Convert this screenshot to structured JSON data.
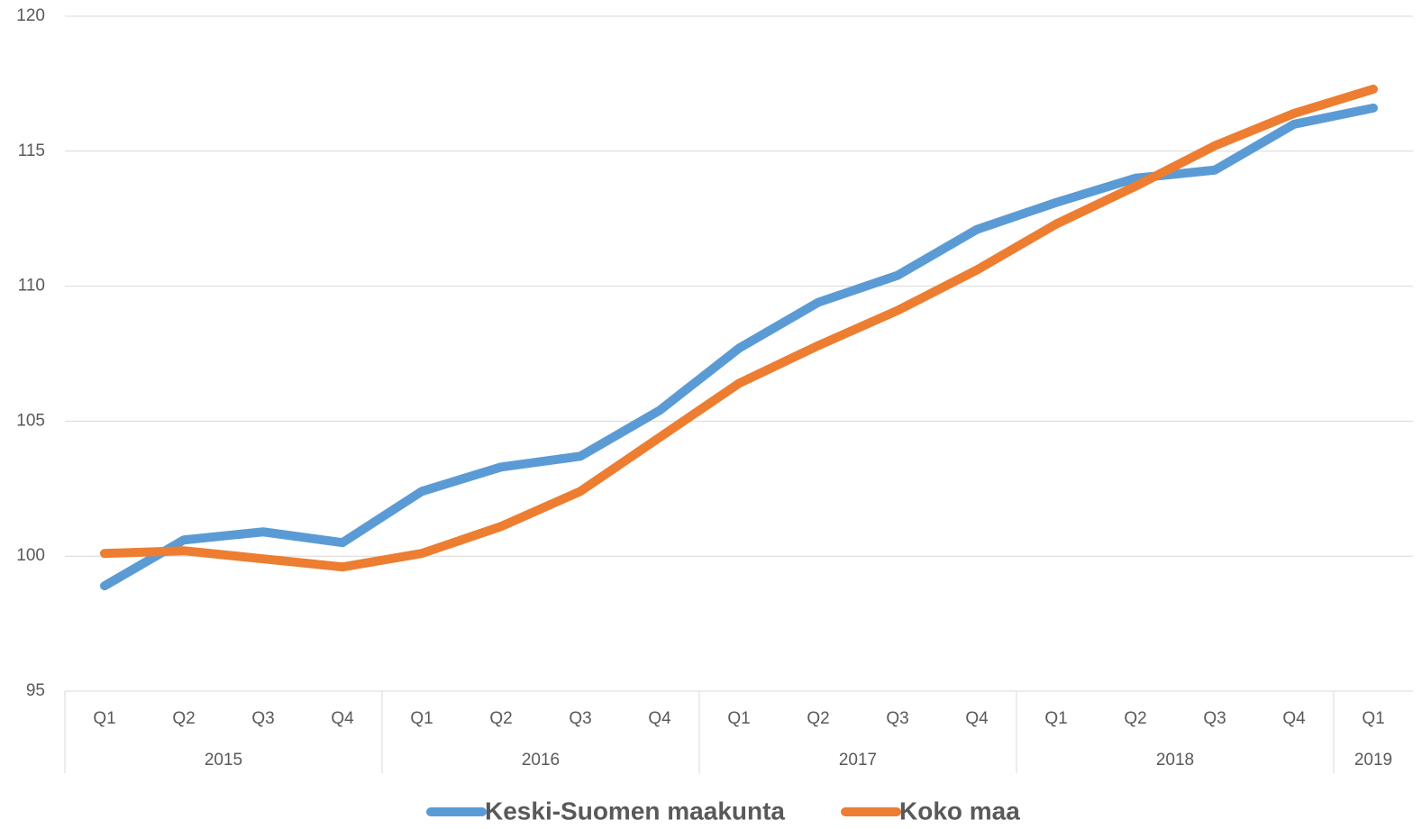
{
  "chart_data": {
    "type": "line",
    "categories": [
      "Q1",
      "Q2",
      "Q3",
      "Q4",
      "Q1",
      "Q2",
      "Q3",
      "Q4",
      "Q1",
      "Q2",
      "Q3",
      "Q4",
      "Q1",
      "Q2",
      "Q3",
      "Q4",
      "Q1"
    ],
    "groups": [
      {
        "label": "2015",
        "size": 4
      },
      {
        "label": "2016",
        "size": 4
      },
      {
        "label": "2017",
        "size": 4
      },
      {
        "label": "2018",
        "size": 4
      },
      {
        "label": "2019",
        "size": 1
      }
    ],
    "series": [
      {
        "name": "Keski-Suomen maakunta",
        "color": "#5b9bd5",
        "values": [
          98.9,
          100.6,
          100.9,
          100.5,
          102.4,
          103.3,
          103.7,
          105.4,
          107.7,
          109.4,
          110.4,
          112.1,
          113.1,
          114.0,
          114.3,
          116.0,
          116.6
        ]
      },
      {
        "name": "Koko maa",
        "color": "#ed7d31",
        "values": [
          100.1,
          100.2,
          99.9,
          99.6,
          100.1,
          101.1,
          102.4,
          104.4,
          106.4,
          107.8,
          109.1,
          110.6,
          112.3,
          113.7,
          115.2,
          116.4,
          117.3
        ]
      }
    ],
    "ylim": [
      95,
      120
    ],
    "yticks": [
      95,
      100,
      105,
      110,
      115,
      120
    ],
    "grid": true
  }
}
